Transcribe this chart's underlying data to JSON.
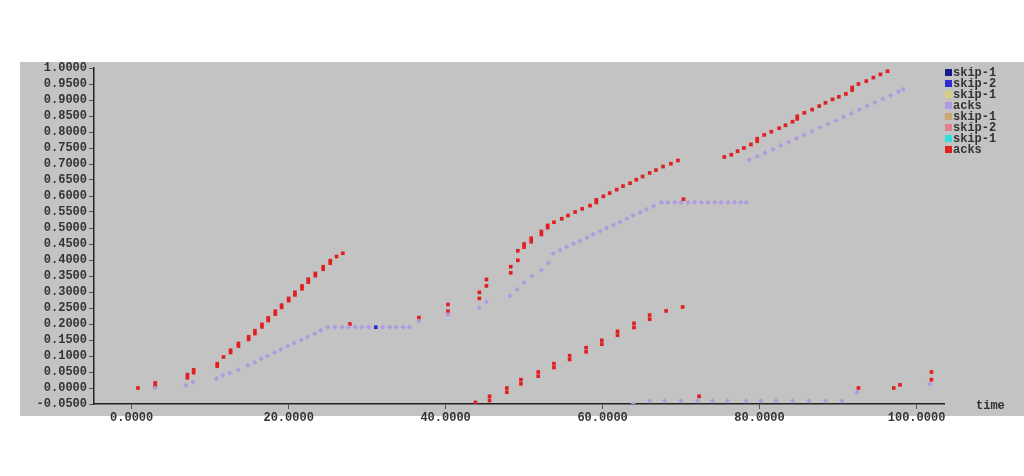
{
  "chart_data": {
    "type": "scatter",
    "xlabel": "time",
    "legend": "right",
    "marker": "square",
    "grid": false,
    "xlim": [
      -4.8,
      103.5
    ],
    "ylim": [
      -0.05,
      1.0
    ],
    "xticks": [
      {
        "value": 0,
        "label": "0.0000"
      },
      {
        "value": 20,
        "label": "20.0000"
      },
      {
        "value": 40,
        "label": "40.0000"
      },
      {
        "value": 60,
        "label": "60.0000"
      },
      {
        "value": 80,
        "label": "80.0000"
      },
      {
        "value": 100,
        "label": "100.0000"
      }
    ],
    "yticks": [
      {
        "value": -0.05,
        "label": "-0.0500"
      },
      {
        "value": 0,
        "label": "0.0000"
      },
      {
        "value": 0.05,
        "label": "0.0500"
      },
      {
        "value": 0.1,
        "label": "0.1000"
      },
      {
        "value": 0.15,
        "label": "0.1500"
      },
      {
        "value": 0.2,
        "label": "0.2000"
      },
      {
        "value": 0.25,
        "label": "0.2500"
      },
      {
        "value": 0.3,
        "label": "0.3000"
      },
      {
        "value": 0.35,
        "label": "0.3500"
      },
      {
        "value": 0.4,
        "label": "0.4000"
      },
      {
        "value": 0.45,
        "label": "0.4500"
      },
      {
        "value": 0.5,
        "label": "0.5000"
      },
      {
        "value": 0.55,
        "label": "0.5500"
      },
      {
        "value": 0.6,
        "label": "0.6000"
      },
      {
        "value": 0.65,
        "label": "0.6500"
      },
      {
        "value": 0.7,
        "label": "0.7000"
      },
      {
        "value": 0.75,
        "label": "0.7500"
      },
      {
        "value": 0.8,
        "label": "0.8000"
      },
      {
        "value": 0.85,
        "label": "0.8500"
      },
      {
        "value": 0.9,
        "label": "0.9000"
      },
      {
        "value": 0.95,
        "label": "0.9500"
      },
      {
        "value": 1.0,
        "label": "1.0000"
      }
    ],
    "series": [
      {
        "name": "skip-1",
        "color": "#1a1a8c"
      },
      {
        "name": "skip-2",
        "color": "#2b2bd6",
        "x": [
          31.1
        ],
        "values": [
          0.19
        ]
      },
      {
        "name": "skip-1",
        "color": "#d8d080"
      },
      {
        "name": "acks",
        "color": "#b09ae0",
        "marker": "diamond",
        "x": [
          3,
          6.9,
          7.8,
          10.8,
          11.6,
          12.5,
          13.6,
          14.8,
          15.7,
          16.5,
          17.3,
          18.2,
          19,
          19.9,
          20.7,
          21.6,
          22.4,
          23.3,
          24.1,
          25,
          25.9,
          26.8,
          27.6,
          28.5,
          29.3,
          30.2,
          32,
          32.9,
          33.7,
          34.6,
          35.4,
          36.6,
          40.3,
          44.3,
          45.2,
          48.2,
          49.1,
          50,
          51,
          52.2,
          53.1,
          53.7,
          54.6,
          55.4,
          56.3,
          57.1,
          58,
          58.8,
          59.7,
          60.5,
          61.4,
          62.2,
          63.1,
          63.9,
          64.8,
          65.6,
          66.5,
          67.5,
          68.3,
          69.2,
          70,
          70.9,
          71.7,
          72.6,
          73.4,
          74.3,
          75.1,
          76,
          76.8,
          77.6,
          78.3,
          63.9,
          66,
          67.9,
          70,
          72.1,
          74,
          75.9,
          78.3,
          80.2,
          82.1,
          84.2,
          86.3,
          88.4,
          90.5,
          92.4,
          101.7,
          78.7,
          79.7,
          80.7,
          81.7,
          82.7,
          83.7,
          84.7,
          85.7,
          86.7,
          87.7,
          88.7,
          89.7,
          90.7,
          91.7,
          92.7,
          93.7,
          94.7,
          95.7,
          96.7,
          97.7,
          98.3
        ],
        "values": [
          0,
          0.008,
          0.019,
          0.029,
          0.04,
          0.047,
          0.057,
          0.071,
          0.08,
          0.091,
          0.1,
          0.111,
          0.12,
          0.131,
          0.14,
          0.15,
          0.16,
          0.17,
          0.18,
          0.19,
          0.19,
          0.19,
          0.19,
          0.19,
          0.19,
          0.19,
          0.19,
          0.19,
          0.19,
          0.19,
          0.19,
          0.209,
          0.23,
          0.251,
          0.269,
          0.288,
          0.308,
          0.329,
          0.35,
          0.369,
          0.39,
          0.421,
          0.431,
          0.441,
          0.451,
          0.46,
          0.47,
          0.48,
          0.49,
          0.499,
          0.509,
          0.519,
          0.529,
          0.539,
          0.549,
          0.558,
          0.568,
          0.58,
          0.58,
          0.58,
          0.58,
          0.58,
          0.58,
          0.58,
          0.58,
          0.58,
          0.58,
          0.58,
          0.58,
          0.58,
          0.58,
          -0.05,
          -0.04,
          -0.04,
          -0.04,
          -0.04,
          -0.04,
          -0.04,
          -0.04,
          -0.04,
          -0.04,
          -0.04,
          -0.04,
          -0.04,
          -0.04,
          -0.013,
          0.013,
          0.713,
          0.724,
          0.735,
          0.746,
          0.758,
          0.769,
          0.78,
          0.791,
          0.802,
          0.814,
          0.825,
          0.836,
          0.847,
          0.858,
          0.87,
          0.881,
          0.892,
          0.903,
          0.914,
          0.926,
          0.933
        ]
      },
      {
        "name": "skip-1",
        "color": "#c8a870"
      },
      {
        "name": "skip-2",
        "color": "#e08090"
      },
      {
        "name": "skip-1",
        "color": "#30e0e0"
      },
      {
        "name": "acks",
        "color": "#e02020",
        "x": [
          0.8,
          3,
          3,
          7.1,
          7.1,
          7.9,
          7.9,
          10.9,
          10.9,
          11.7,
          12.6,
          12.6,
          13.6,
          13.6,
          14.9,
          14.9,
          15.7,
          15.7,
          16.6,
          16.6,
          17.4,
          17.4,
          18.3,
          18.3,
          19.1,
          19.1,
          20,
          20,
          20.8,
          20.8,
          21.7,
          21.7,
          22.5,
          22.5,
          23.4,
          23.4,
          24.4,
          24.4,
          25.3,
          25.3,
          26.1,
          26.9,
          27.8,
          36.6,
          40.3,
          40.3,
          44.3,
          44.3,
          45.2,
          45.2,
          48.3,
          48.3,
          49.2,
          49.2,
          50,
          50,
          50.9,
          50.9,
          52.2,
          52.2,
          53,
          53,
          53.8,
          54.8,
          55.6,
          56.5,
          57.4,
          58.4,
          59.2,
          59.2,
          60.1,
          60.9,
          61.8,
          62.6,
          63.5,
          64.3,
          65.1,
          66,
          66.8,
          67.7,
          68.7,
          69.6,
          70.3,
          43.8,
          45.6,
          45.6,
          47.8,
          47.8,
          49.6,
          49.6,
          51.8,
          51.8,
          53.8,
          53.8,
          55.8,
          55.8,
          57.9,
          57.9,
          59.9,
          59.9,
          61.9,
          61.9,
          64,
          64,
          66,
          66,
          68.1,
          70.2,
          72.3,
          75.5,
          76.4,
          77.2,
          78,
          78.9,
          79.7,
          79.7,
          80.6,
          81.5,
          82.5,
          83.3,
          84.2,
          84.8,
          84.8,
          85.7,
          86.7,
          87.6,
          88.4,
          89.3,
          90.1,
          91,
          91.8,
          91.8,
          92.6,
          93.6,
          94.5,
          95.4,
          96.3,
          92.6,
          97.1,
          97.9,
          101.9,
          101.9
        ],
        "values": [
          0,
          0.016,
          0.007,
          0.042,
          0.032,
          0.057,
          0.048,
          0.076,
          0.068,
          0.097,
          0.118,
          0.111,
          0.139,
          0.131,
          0.16,
          0.152,
          0.179,
          0.17,
          0.199,
          0.191,
          0.219,
          0.211,
          0.24,
          0.231,
          0.259,
          0.252,
          0.28,
          0.273,
          0.299,
          0.291,
          0.319,
          0.31,
          0.34,
          0.331,
          0.358,
          0.351,
          0.379,
          0.371,
          0.398,
          0.39,
          0.411,
          0.421,
          0.2,
          0.22,
          0.261,
          0.24,
          0.299,
          0.28,
          0.339,
          0.319,
          0.379,
          0.36,
          0.399,
          0.429,
          0.45,
          0.44,
          0.468,
          0.457,
          0.489,
          0.48,
          0.508,
          0.501,
          0.518,
          0.529,
          0.539,
          0.55,
          0.56,
          0.57,
          0.588,
          0.58,
          0.599,
          0.609,
          0.62,
          0.631,
          0.64,
          0.651,
          0.661,
          0.672,
          0.681,
          0.692,
          0.701,
          0.711,
          0.59,
          -0.045,
          -0.026,
          -0.039,
          0,
          -0.013,
          0.026,
          0.013,
          0.05,
          0.037,
          0.076,
          0.064,
          0.101,
          0.089,
          0.126,
          0.113,
          0.149,
          0.137,
          0.177,
          0.165,
          0.202,
          0.189,
          0.228,
          0.215,
          0.241,
          0.253,
          -0.026,
          0.722,
          0.729,
          0.74,
          0.75,
          0.761,
          0.779,
          0.771,
          0.791,
          0.801,
          0.812,
          0.821,
          0.832,
          0.849,
          0.841,
          0.86,
          0.87,
          0.881,
          0.891,
          0.902,
          0.91,
          0.919,
          0.939,
          0.931,
          0.95,
          0.959,
          0.97,
          0.98,
          0.99,
          0,
          0,
          0.01,
          0.05,
          0.026
        ]
      }
    ]
  }
}
